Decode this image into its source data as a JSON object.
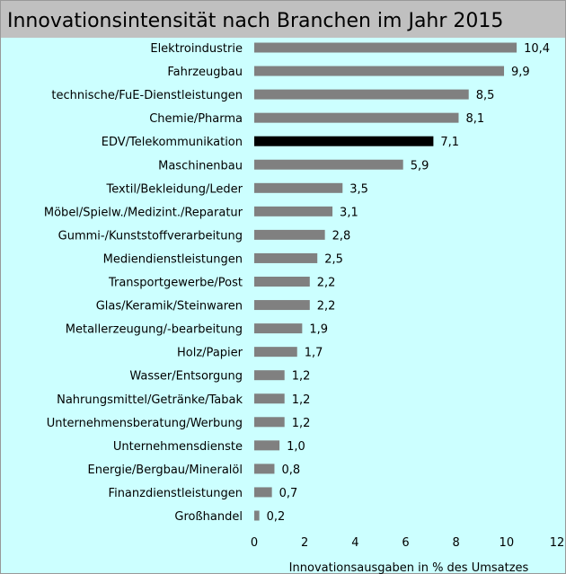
{
  "chart_data": {
    "type": "hbar",
    "title": "Innovationsintensität nach Branchen im Jahr 2015",
    "x_label": "Innovationsausgaben in % des Umsatzes",
    "categories": [
      "Elektroindustrie",
      "Fahrzeugbau",
      "technische/FuE-Dienstleistungen",
      "Chemie/Pharma",
      "EDV/Telekommunikation",
      "Maschinenbau",
      "Textil/Bekleidung/Leder",
      "Möbel/Spielw./Medizint./Reparatur",
      "Gummi-/Kunststoffverarbeitung",
      "Mediendienstleistungen",
      "Transportgewerbe/Post",
      "Glas/Keramik/Steinwaren",
      "Metallerzeugung/-bearbeitung",
      "Holz/Papier",
      "Wasser/Entsorgung",
      "Nahrungsmittel/Getränke/Tabak",
      "Unternehmensberatung/Werbung",
      "Unternehmensdienste",
      "Energie/Bergbau/Mineralöl",
      "Finanzdienstleistungen",
      "Großhandel"
    ],
    "values": [
      10.4,
      9.9,
      8.5,
      8.1,
      7.1,
      5.9,
      3.5,
      3.1,
      2.8,
      2.5,
      2.2,
      2.2,
      1.9,
      1.7,
      1.2,
      1.2,
      1.2,
      1.0,
      0.8,
      0.7,
      0.2
    ],
    "value_labels": [
      "10,4",
      "9,9",
      "8,5",
      "8,1",
      "7,1",
      "5,9",
      "3,5",
      "3,1",
      "2,8",
      "2,5",
      "2,2",
      "2,2",
      "1,9",
      "1,7",
      "1,2",
      "1,2",
      "1,2",
      "1,0",
      "0,8",
      "0,7",
      "0,2"
    ],
    "colors": [
      "#808080",
      "#808080",
      "#808080",
      "#808080",
      "#000000",
      "#808080",
      "#808080",
      "#808080",
      "#808080",
      "#808080",
      "#808080",
      "#808080",
      "#808080",
      "#808080",
      "#808080",
      "#808080",
      "#808080",
      "#808080",
      "#808080",
      "#808080",
      "#808080"
    ],
    "xlim": [
      0,
      12
    ],
    "xticks": [
      0,
      2,
      4,
      6,
      8,
      10,
      12
    ],
    "grid": false
  }
}
